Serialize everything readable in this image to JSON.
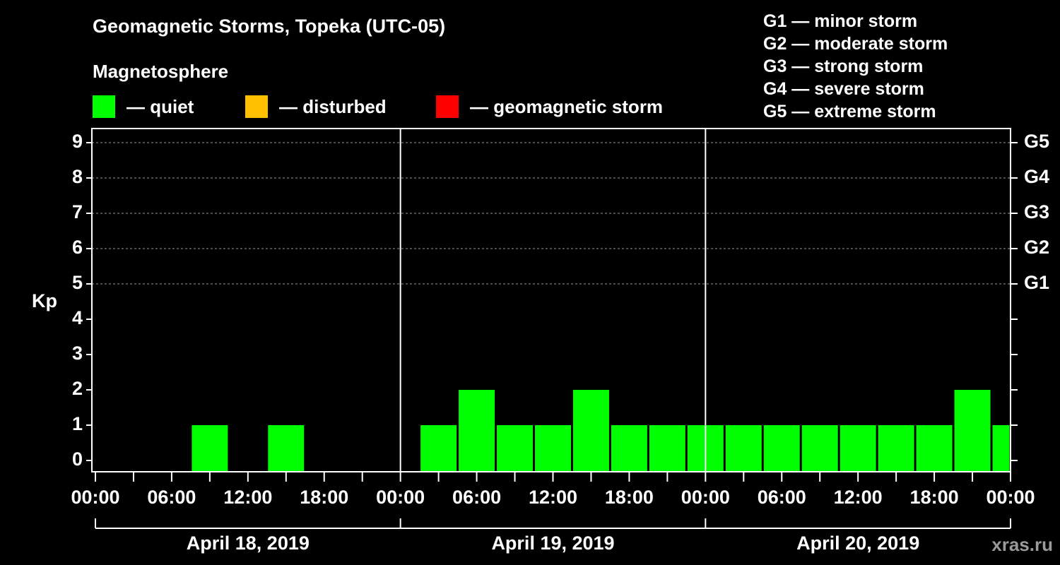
{
  "title": "Geomagnetic Storms, Topeka (UTC-05)",
  "magnetosphere": {
    "heading": "Magnetosphere",
    "items": [
      {
        "label": "— quiet",
        "color": "#00ff00"
      },
      {
        "label": "— disturbed",
        "color": "#ffc000"
      },
      {
        "label": "— geomagnetic storm",
        "color": "#ff0000"
      }
    ]
  },
  "storm_scale": [
    "G1 — minor storm",
    "G2 — moderate storm",
    "G3 — strong storm",
    "G4 — severe storm",
    "G5 — extreme storm"
  ],
  "watermark": "xras.ru",
  "chart_data": {
    "type": "bar",
    "ylabel": "Kp",
    "ylim": [
      0,
      9
    ],
    "y_ticks": [
      "0",
      "1",
      "2",
      "3",
      "4",
      "5",
      "6",
      "7",
      "8",
      "9"
    ],
    "right_axis_labels": [
      {
        "kp": 5,
        "label": "G1"
      },
      {
        "kp": 6,
        "label": "G2"
      },
      {
        "kp": 7,
        "label": "G3"
      },
      {
        "kp": 8,
        "label": "G4"
      },
      {
        "kp": 9,
        "label": "G5"
      }
    ],
    "x_tick_labels": [
      "00:00",
      "06:00",
      "12:00",
      "18:00",
      "00:00",
      "06:00",
      "12:00",
      "18:00",
      "00:00",
      "06:00",
      "12:00",
      "18:00",
      "00:00"
    ],
    "days": [
      "April 18, 2019",
      "April 19, 2019",
      "April 20, 2019"
    ],
    "grid": true,
    "bar_color": "#00ff00",
    "x_unit": "hours from April 18, 2019 00:00",
    "bars": [
      {
        "start": 7.5,
        "end": 10.5,
        "kp": 1
      },
      {
        "start": 13.5,
        "end": 16.5,
        "kp": 1
      },
      {
        "start": 25.5,
        "end": 28.5,
        "kp": 1
      },
      {
        "start": 28.5,
        "end": 31.5,
        "kp": 2
      },
      {
        "start": 31.5,
        "end": 34.5,
        "kp": 1
      },
      {
        "start": 34.5,
        "end": 37.5,
        "kp": 1
      },
      {
        "start": 37.5,
        "end": 40.5,
        "kp": 2
      },
      {
        "start": 40.5,
        "end": 43.5,
        "kp": 1
      },
      {
        "start": 43.5,
        "end": 46.5,
        "kp": 1
      },
      {
        "start": 46.5,
        "end": 49.5,
        "kp": 1
      },
      {
        "start": 49.5,
        "end": 52.5,
        "kp": 1
      },
      {
        "start": 52.5,
        "end": 55.5,
        "kp": 1
      },
      {
        "start": 55.5,
        "end": 58.5,
        "kp": 1
      },
      {
        "start": 58.5,
        "end": 61.5,
        "kp": 1
      },
      {
        "start": 61.5,
        "end": 64.5,
        "kp": 1
      },
      {
        "start": 64.5,
        "end": 67.5,
        "kp": 1
      },
      {
        "start": 67.5,
        "end": 70.5,
        "kp": 2
      },
      {
        "start": 70.5,
        "end": 72,
        "kp": 1
      }
    ]
  }
}
